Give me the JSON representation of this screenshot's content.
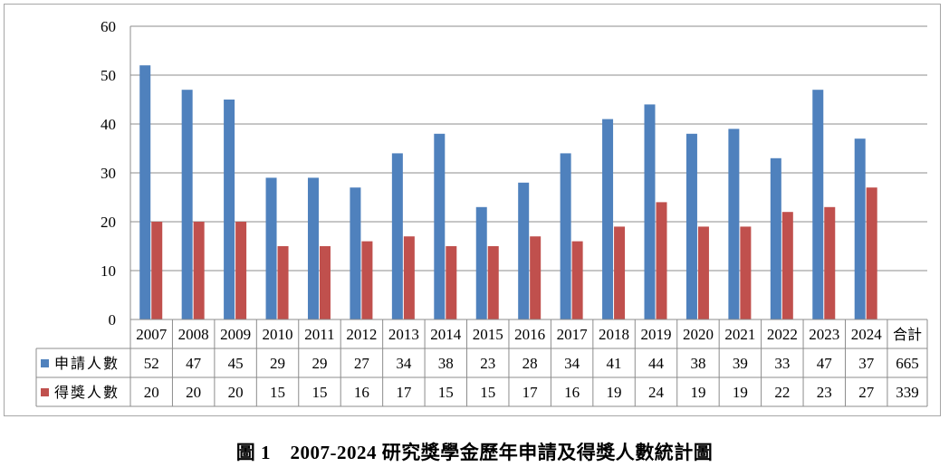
{
  "chart_data": {
    "type": "bar",
    "categories": [
      "2007",
      "2008",
      "2009",
      "2010",
      "2011",
      "2012",
      "2013",
      "2014",
      "2015",
      "2016",
      "2017",
      "2018",
      "2019",
      "2020",
      "2021",
      "2022",
      "2023",
      "2024"
    ],
    "total_label": "合計",
    "series": [
      {
        "name": "申請人數",
        "color": "#4f81bd",
        "values": [
          52,
          47,
          45,
          29,
          29,
          27,
          34,
          38,
          23,
          28,
          34,
          41,
          44,
          38,
          39,
          33,
          47,
          37
        ],
        "total": 665
      },
      {
        "name": "得獎人數",
        "color": "#c0504d",
        "values": [
          20,
          20,
          20,
          15,
          15,
          16,
          17,
          15,
          15,
          17,
          16,
          19,
          24,
          19,
          19,
          22,
          23,
          27
        ],
        "total": 339
      }
    ],
    "yticks": [
      0,
      10,
      20,
      30,
      40,
      50,
      60
    ],
    "ylim": [
      0,
      60
    ],
    "grid": true,
    "legend": "data-table-left",
    "data_table": true
  },
  "caption": "圖 1　2007-2024 研究獎學金歷年申請及得獎人數統計圖"
}
